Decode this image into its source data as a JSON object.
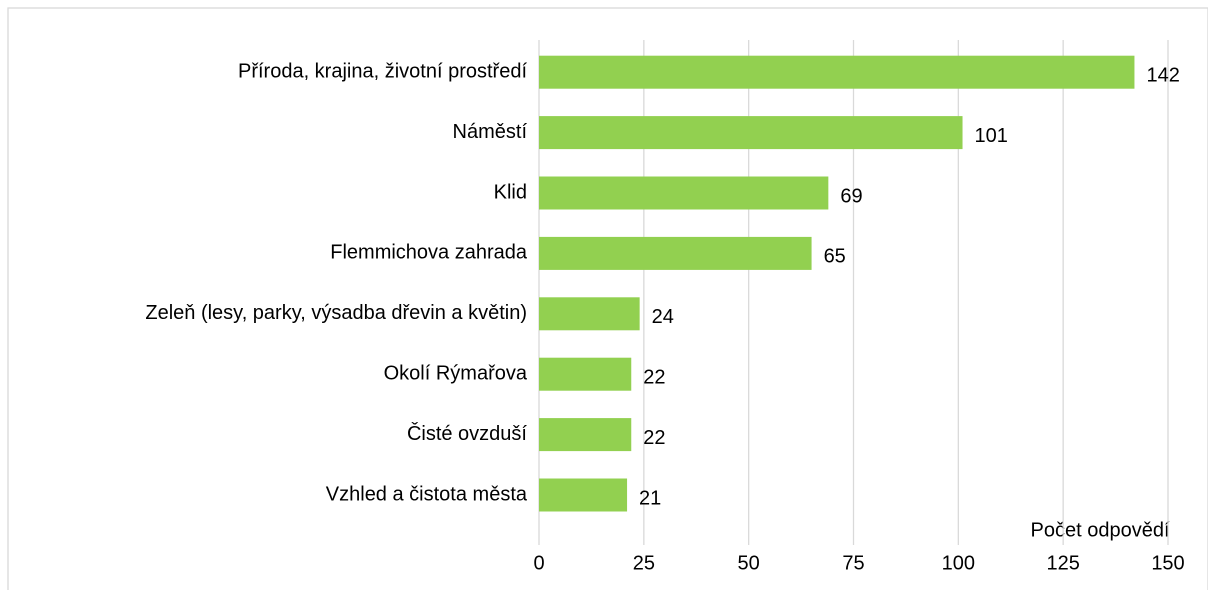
{
  "chart_data": {
    "type": "bar",
    "orientation": "horizontal",
    "categories": [
      "Příroda, krajina, životní prostředí",
      "Náměstí",
      "Klid",
      "Flemmichova zahrada",
      "Zeleň (lesy, parky, výsadba dřevin a květin)",
      "Okolí Rýmařova",
      "Čisté ovzduší",
      "Vzhled a čistota města"
    ],
    "values": [
      142,
      101,
      69,
      65,
      24,
      22,
      22,
      21
    ],
    "color": "#92d050",
    "x_label": "Počet odpovědí",
    "xlim": [
      0,
      150
    ],
    "xticks": [
      0,
      25,
      50,
      75,
      100,
      125,
      150
    ],
    "grid": true
  }
}
